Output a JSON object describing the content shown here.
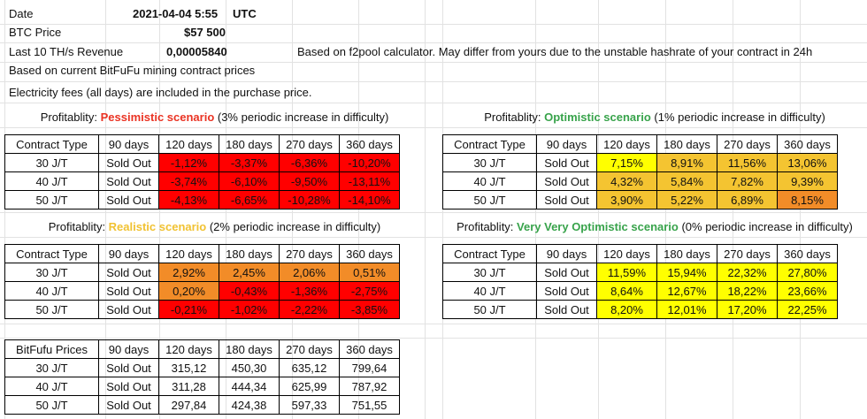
{
  "header": {
    "date_label": "Date",
    "date_value": "2021-04-04 5:55",
    "date_tz": "UTC",
    "btc_label": "BTC Price",
    "btc_value": "$57 500",
    "revenue_label": "Last 10 TH/s Revenue",
    "revenue_value": "0,00005840",
    "revenue_note": "Based on f2pool calculator. May differ from yours due to the unstable hashrate of your contract in 24h",
    "note_prices": "Based on current BitFuFu mining contract prices",
    "note_fees": "Electricity fees (all days) are included in the purchase price."
  },
  "tables": [
    {
      "caption_prefix": "Profitablity: ",
      "caption_scenario": "Pessimistic scenario",
      "caption_suffix": " (3% periodic increase in difficulty)",
      "scenario_color": "#ea3323",
      "headers": [
        "Contract Type",
        "90 days",
        "120 days",
        "180 days",
        "270 days",
        "360 days"
      ],
      "rows": [
        {
          "cells": [
            "30 J/T",
            "Sold Out",
            "-1,12%",
            "-3,37%",
            "-6,36%",
            "-10,20%"
          ],
          "colors": [
            "#ff0000",
            "#ff0000",
            "#ff0000",
            "#ff0000"
          ]
        },
        {
          "cells": [
            "40 J/T",
            "Sold Out",
            "-3,74%",
            "-6,10%",
            "-9,50%",
            "-13,11%"
          ],
          "colors": [
            "#ff0000",
            "#ff0000",
            "#ff0000",
            "#ff0000"
          ]
        },
        {
          "cells": [
            "50 J/T",
            "Sold Out",
            "-4,13%",
            "-6,65%",
            "-10,28%",
            "-14,10%"
          ],
          "colors": [
            "#ff0000",
            "#ff0000",
            "#ff0000",
            "#ff0000"
          ]
        }
      ]
    },
    {
      "caption_prefix": "Profitablity: ",
      "caption_scenario": "Optimistic scenario",
      "caption_suffix": " (1% periodic increase in difficulty)",
      "scenario_color": "#38a34b",
      "headers": [
        "Contract Type",
        "90 days",
        "120 days",
        "180 days",
        "270 days",
        "360 days"
      ],
      "rows": [
        {
          "cells": [
            "30 J/T",
            "Sold Out",
            "7,15%",
            "8,91%",
            "11,56%",
            "13,06%"
          ],
          "colors": [
            "#ffff00",
            "#f4c431",
            "#f4c431",
            "#f4c431"
          ]
        },
        {
          "cells": [
            "40 J/T",
            "Sold Out",
            "4,32%",
            "5,84%",
            "7,82%",
            "9,39%"
          ],
          "colors": [
            "#f4c431",
            "#f4c431",
            "#f4c431",
            "#f4c431"
          ]
        },
        {
          "cells": [
            "50 J/T",
            "Sold Out",
            "3,90%",
            "5,22%",
            "6,89%",
            "8,15%"
          ],
          "colors": [
            "#f4c431",
            "#f4c431",
            "#f4c431",
            "#f28c28"
          ]
        }
      ]
    },
    {
      "caption_prefix": "Profitablity: ",
      "caption_scenario": "Realistic scenario",
      "caption_suffix": " (2% periodic increase in difficulty)",
      "scenario_color": "#f1c232",
      "headers": [
        "Contract Type",
        "90 days",
        "120 days",
        "180 days",
        "270 days",
        "360 days"
      ],
      "rows": [
        {
          "cells": [
            "30 J/T",
            "Sold Out",
            "2,92%",
            "2,45%",
            "2,06%",
            "0,51%"
          ],
          "colors": [
            "#f28c28",
            "#f28c28",
            "#f28c28",
            "#f28c28"
          ]
        },
        {
          "cells": [
            "40 J/T",
            "Sold Out",
            "0,20%",
            "-0,43%",
            "-1,36%",
            "-2,75%"
          ],
          "colors": [
            "#f28c28",
            "#ff0000",
            "#ff0000",
            "#ff0000"
          ]
        },
        {
          "cells": [
            "50 J/T",
            "Sold Out",
            "-0,21%",
            "-1,02%",
            "-2,22%",
            "-3,85%"
          ],
          "colors": [
            "#ff0000",
            "#ff0000",
            "#ff0000",
            "#ff0000"
          ]
        }
      ]
    },
    {
      "caption_prefix": "Profitablity: ",
      "caption_scenario": "Very Very Optimistic scenario",
      "caption_suffix": " (0% periodic increase in difficulty)",
      "scenario_color": "#38a34b",
      "headers": [
        "Contract Type",
        "90 days",
        "120 days",
        "180 days",
        "270 days",
        "360 days"
      ],
      "rows": [
        {
          "cells": [
            "30 J/T",
            "Sold Out",
            "11,59%",
            "15,94%",
            "22,32%",
            "27,80%"
          ],
          "colors": [
            "#ffff00",
            "#ffff00",
            "#ffff00",
            "#ffff00"
          ]
        },
        {
          "cells": [
            "40 J/T",
            "Sold Out",
            "8,64%",
            "12,67%",
            "18,22%",
            "23,66%"
          ],
          "colors": [
            "#ffff00",
            "#ffff00",
            "#ffff00",
            "#ffff00"
          ]
        },
        {
          "cells": [
            "50 J/T",
            "Sold Out",
            "8,20%",
            "12,01%",
            "17,20%",
            "22,25%"
          ],
          "colors": [
            "#ffff00",
            "#ffff00",
            "#ffff00",
            "#ffff00"
          ]
        }
      ]
    },
    {
      "headers": [
        "BitFufu Prices",
        "90 days",
        "120 days",
        "180 days",
        "270 days",
        "360 days"
      ],
      "rows": [
        {
          "cells": [
            "30 J/T",
            "Sold Out",
            "315,12",
            "450,30",
            "635,12",
            "799,64"
          ],
          "colors": [
            "",
            "",
            "",
            ""
          ]
        },
        {
          "cells": [
            "40 J/T",
            "Sold Out",
            "311,28",
            "444,34",
            "625,99",
            "787,92"
          ],
          "colors": [
            "",
            "",
            "",
            ""
          ]
        },
        {
          "cells": [
            "50 J/T",
            "Sold Out",
            "297,84",
            "424,38",
            "597,33",
            "751,55"
          ],
          "colors": [
            "",
            "",
            "",
            ""
          ]
        }
      ]
    }
  ]
}
